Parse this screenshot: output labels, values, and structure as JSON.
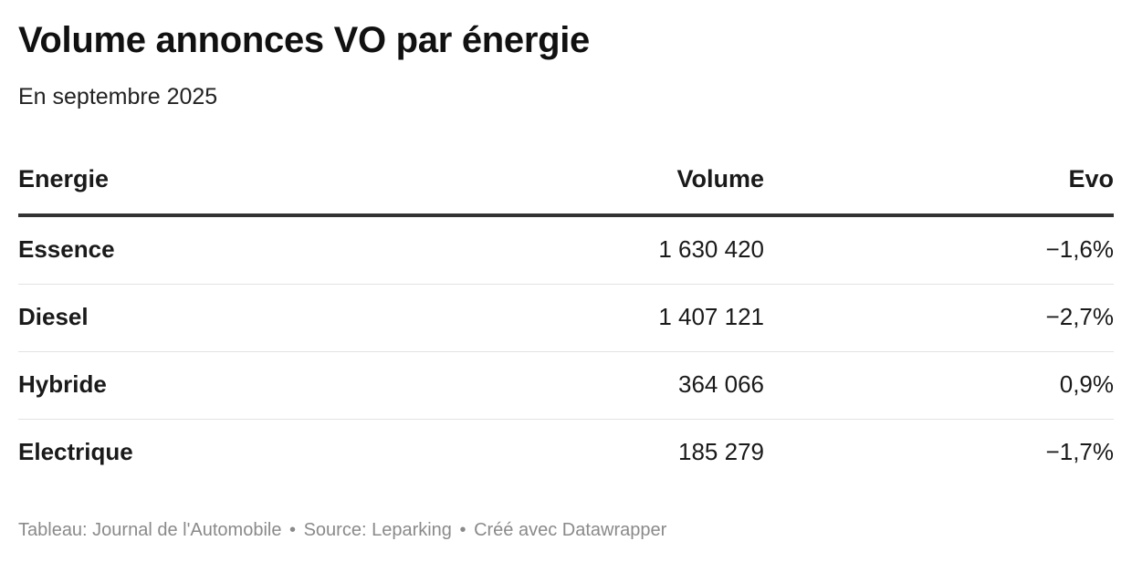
{
  "chart_data": {
    "type": "table",
    "title": "Volume annonces VO par énergie",
    "subtitle": "En septembre 2025",
    "columns": [
      "Energie",
      "Volume",
      "Evo"
    ],
    "rows": [
      {
        "energie": "Essence",
        "volume": "1 630 420",
        "evo": "−1,6%"
      },
      {
        "energie": "Diesel",
        "volume": "1 407 121",
        "evo": "−2,7%"
      },
      {
        "energie": "Hybride",
        "volume": "364 066",
        "evo": "0,9%"
      },
      {
        "energie": "Electrique",
        "volume": "185 279",
        "evo": "−1,7%"
      }
    ]
  },
  "footer": {
    "credit": "Tableau: Journal de l'Automobile",
    "source": "Source: Leparking",
    "made_with": "Créé avec Datawrapper",
    "separator": "•"
  }
}
